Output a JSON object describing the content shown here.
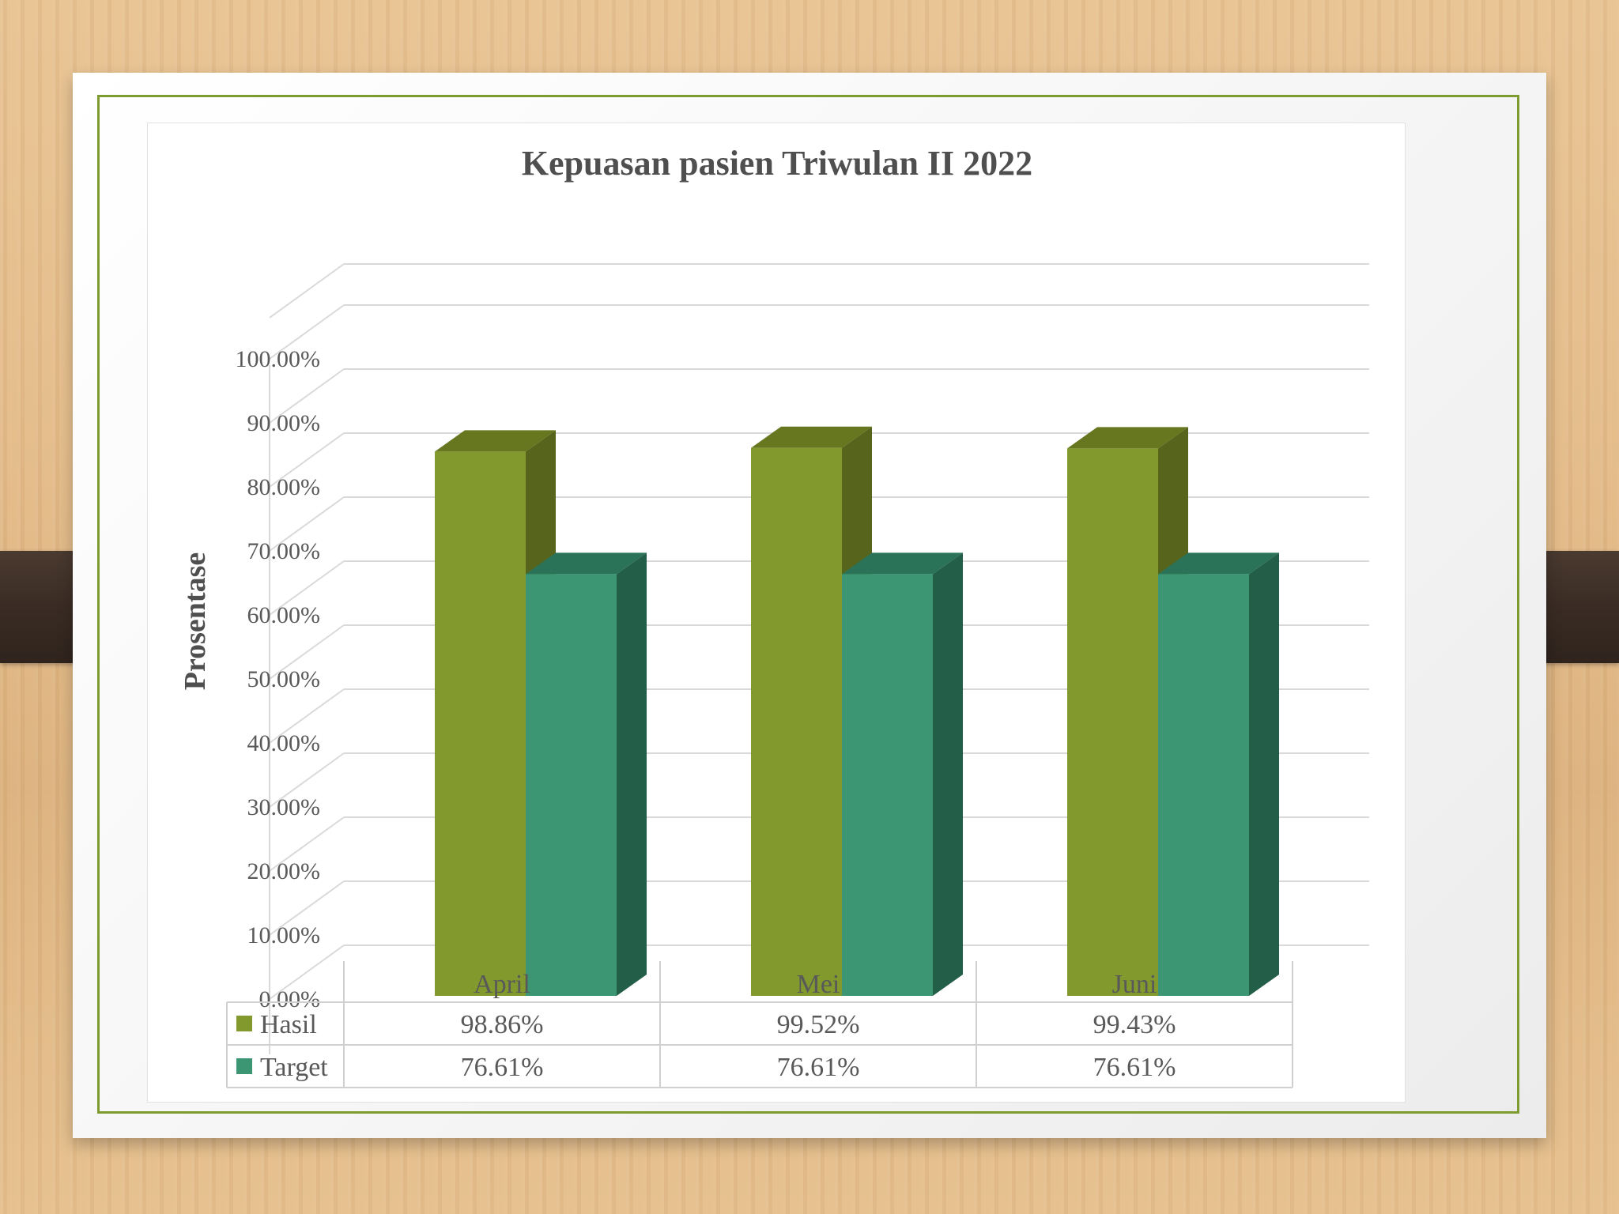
{
  "colors": {
    "hasil_front": "#82992e",
    "hasil_side": "#56641c",
    "hasil_top": "#66771f",
    "target_front": "#3c9573",
    "target_side": "#235f48",
    "target_top": "#2b7358",
    "border_accent": "#7d9b2e"
  },
  "chart_data": {
    "type": "bar",
    "title": "Kepuasan pasien  Triwulan II 2022",
    "xlabel": "",
    "ylabel": "Prosentase",
    "categories": [
      "April",
      "Mei",
      "Juni"
    ],
    "series": [
      {
        "name": "Hasil",
        "values": [
          98.86,
          99.52,
          99.43
        ],
        "labels": [
          "98.86%",
          "99.52%",
          "99.43%"
        ]
      },
      {
        "name": "Target",
        "values": [
          76.61,
          76.61,
          76.61
        ],
        "labels": [
          "76.61%",
          "76.61%",
          "76.61%"
        ]
      }
    ],
    "ylim": [
      0,
      100
    ],
    "yticks": [
      "0.00%",
      "10.00%",
      "20.00%",
      "30.00%",
      "40.00%",
      "50.00%",
      "60.00%",
      "70.00%",
      "80.00%",
      "90.00%",
      "100.00%"
    ],
    "grid": true,
    "legend": "data-table",
    "style": "3d-clustered-column"
  }
}
